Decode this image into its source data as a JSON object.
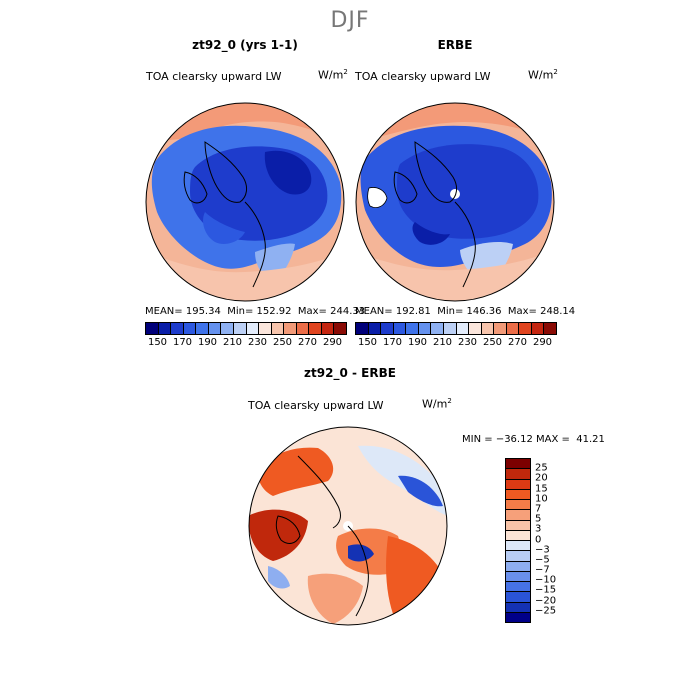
{
  "title": "DJF",
  "panels": [
    {
      "title": "zt92_0 (yrs 1-1)",
      "subtitle": "TOA clearsky upward LW",
      "unit_base": "W/m",
      "unit_exp": "2",
      "stats": {
        "mean_label": "MEAN=",
        "mean": "195.34",
        "min_label": "Min=",
        "min": "152.92",
        "max_label": "Max=",
        "max": "244.33"
      }
    },
    {
      "title": "ERBE",
      "subtitle": "TOA clearsky upward LW",
      "unit_base": "W/m",
      "unit_exp": "2",
      "stats": {
        "mean_label": "MEAN=",
        "mean": "192.81",
        "min_label": "Min=",
        "min": "146.36",
        "max_label": "Max=",
        "max": "248.14"
      }
    },
    {
      "title": "zt92_0 - ERBE",
      "subtitle": "TOA clearsky upward LW",
      "unit_base": "W/m",
      "unit_exp": "2",
      "stats": {
        "min_label": "MIN =",
        "min": "−36.12",
        "max_label": "MAX =",
        "max": "41.21"
      }
    }
  ],
  "colorbar_top": {
    "ticks": [
      "150",
      "170",
      "190",
      "210",
      "230",
      "250",
      "270",
      "290"
    ],
    "colors": [
      "#00007a",
      "#0a1ea8",
      "#1e3ccc",
      "#2c58e0",
      "#3f73ea",
      "#6592ef",
      "#8fb1f2",
      "#bcd0f5",
      "#e3ecfb",
      "#fbe6dc",
      "#f7c4ac",
      "#f29a78",
      "#ec6d48",
      "#e0441f",
      "#c42510",
      "#8a0b05"
    ]
  },
  "colorbar_diff": {
    "labels": [
      "25",
      "20",
      "15",
      "10",
      "7",
      "5",
      "3",
      "0",
      "−3",
      "−5",
      "−7",
      "−10",
      "−15",
      "−20",
      "−25"
    ],
    "colors": [
      "#7c0000",
      "#c0280c",
      "#dd3a14",
      "#ef5a22",
      "#f47c48",
      "#f6a07a",
      "#f8c4a8",
      "#fbe4d6",
      "#dde8f8",
      "#b8cdf4",
      "#8eaef0",
      "#6a90ec",
      "#4672e6",
      "#2a54d8",
      "#1432b4",
      "#000088"
    ]
  }
}
